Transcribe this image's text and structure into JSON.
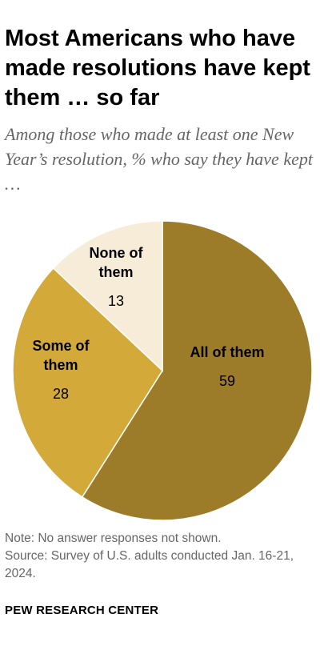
{
  "title": "Most Americans who have made resolutions have kept them … so far",
  "subtitle": "Among those who made at least one New Year’s resolution, % who say they have kept …",
  "note": "Note: No answer responses not shown.",
  "source": "Source: Survey of U.S. adults conducted Jan. 16-21, 2024.",
  "brand": "PEW RESEARCH CENTER",
  "chart_data": {
    "type": "pie",
    "title": "Most Americans who have made resolutions have kept them … so far",
    "subtitle": "Among those who made at least one New Year’s resolution, % who say they have kept …",
    "slices": [
      {
        "label": "All of them",
        "label_lines": [
          "All of them"
        ],
        "value": 59,
        "display": "59",
        "color": "#9c7c28"
      },
      {
        "label": "Some of them",
        "label_lines": [
          "Some of",
          "them"
        ],
        "value": 28,
        "display": "28",
        "color": "#d3a939"
      },
      {
        "label": "None of them",
        "label_lines": [
          "None of",
          "them"
        ],
        "value": 13,
        "display": "13",
        "color": "#f6ecd8"
      }
    ],
    "start": "12 o'clock",
    "direction": "clockwise",
    "legend": "none"
  }
}
